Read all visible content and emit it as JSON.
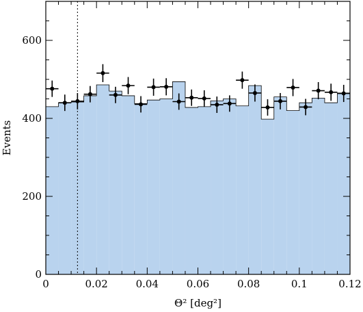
{
  "chart_data": {
    "type": "bar",
    "xlabel": "Θ² [deg²]",
    "ylabel": "Events",
    "xlim": [
      0,
      0.12
    ],
    "ylim": [
      0,
      700
    ],
    "x_ticks": [
      0,
      0.02,
      0.04,
      0.06,
      0.08,
      0.1,
      0.12
    ],
    "x_tick_labels": [
      "0",
      "0.02",
      "0.04",
      "0.06",
      "0.08",
      "0.1",
      "0.12"
    ],
    "y_ticks": [
      0,
      200,
      400,
      600
    ],
    "y_tick_labels": [
      "0",
      "200",
      "400",
      "600"
    ],
    "bin_width": 0.005,
    "cut_line_x": 0.0125,
    "background_fill_color": "#b9d3ee",
    "background": {
      "bin_edges": [
        0,
        0.005,
        0.01,
        0.015,
        0.02,
        0.025,
        0.03,
        0.035,
        0.04,
        0.045,
        0.05,
        0.055,
        0.06,
        0.065,
        0.07,
        0.075,
        0.08,
        0.085,
        0.09,
        0.095,
        0.1,
        0.105,
        0.11,
        0.115,
        0.12
      ],
      "values": [
        430,
        440,
        442,
        458,
        486,
        470,
        458,
        438,
        447,
        450,
        494,
        428,
        430,
        445,
        450,
        432,
        484,
        398,
        455,
        420,
        440,
        452,
        440,
        465
      ]
    },
    "on_data": {
      "x": [
        0.0025,
        0.0075,
        0.0125,
        0.0175,
        0.0225,
        0.0275,
        0.0325,
        0.0375,
        0.0425,
        0.0475,
        0.0525,
        0.0575,
        0.0625,
        0.0675,
        0.0725,
        0.0775,
        0.0825,
        0.0875,
        0.0925,
        0.0975,
        0.1025,
        0.1075,
        0.1125,
        0.1175
      ],
      "y": [
        476,
        440,
        444,
        462,
        516,
        460,
        484,
        436,
        480,
        481,
        443,
        453,
        451,
        435,
        438,
        498,
        465,
        428,
        444,
        479,
        429,
        471,
        467,
        464
      ],
      "yerr": [
        21,
        21,
        21,
        21,
        23,
        21,
        22,
        21,
        22,
        22,
        21,
        21,
        21,
        21,
        21,
        22,
        22,
        21,
        21,
        22,
        21,
        22,
        22,
        22
      ]
    }
  }
}
